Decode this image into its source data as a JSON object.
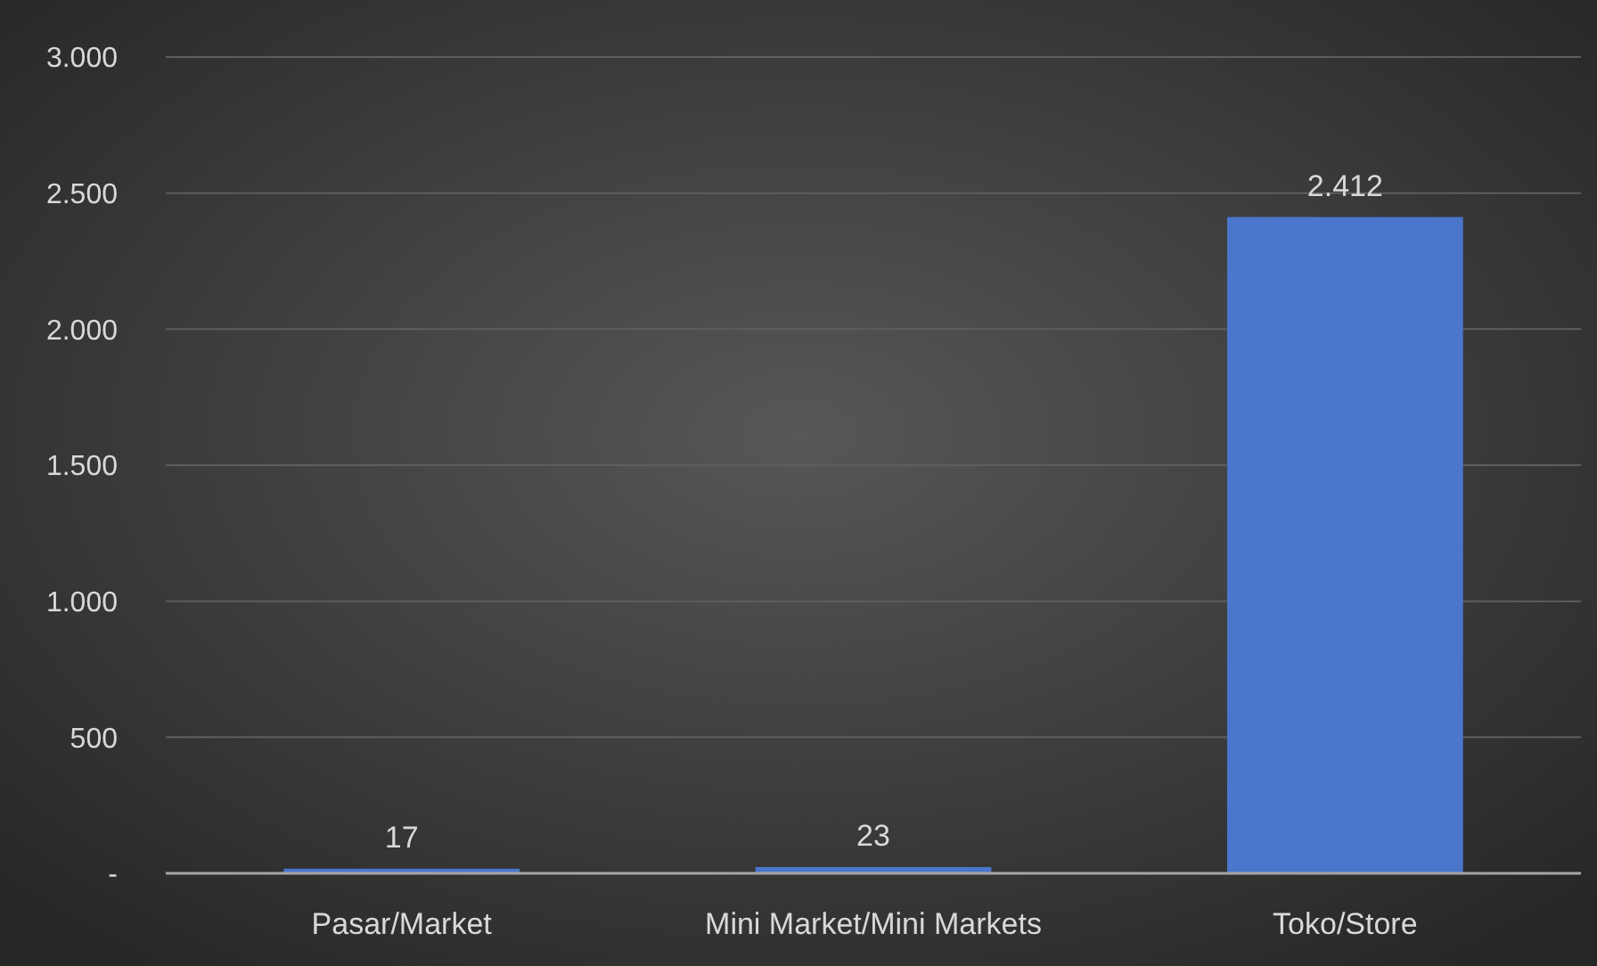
{
  "chart_data": {
    "type": "bar",
    "categories": [
      "Pasar/Market",
      "Mini Market/Mini Markets",
      "Toko/Store"
    ],
    "values": [
      17,
      23,
      2412
    ],
    "color": "#4a76cc",
    "data_labels": true,
    "value_labels": [
      "17",
      "23",
      "2.412"
    ],
    "ylim": [
      0,
      3000
    ],
    "yticks": [
      {
        "value": 0,
        "label": "-"
      },
      500,
      {
        "value": 1000,
        "label": "1.000"
      },
      {
        "value": 1500,
        "label": "1.500"
      },
      {
        "value": 2000,
        "label": "2.000"
      },
      {
        "value": 2500,
        "label": "2.500"
      },
      {
        "value": 3000,
        "label": "3.000"
      }
    ],
    "grid": "y"
  }
}
